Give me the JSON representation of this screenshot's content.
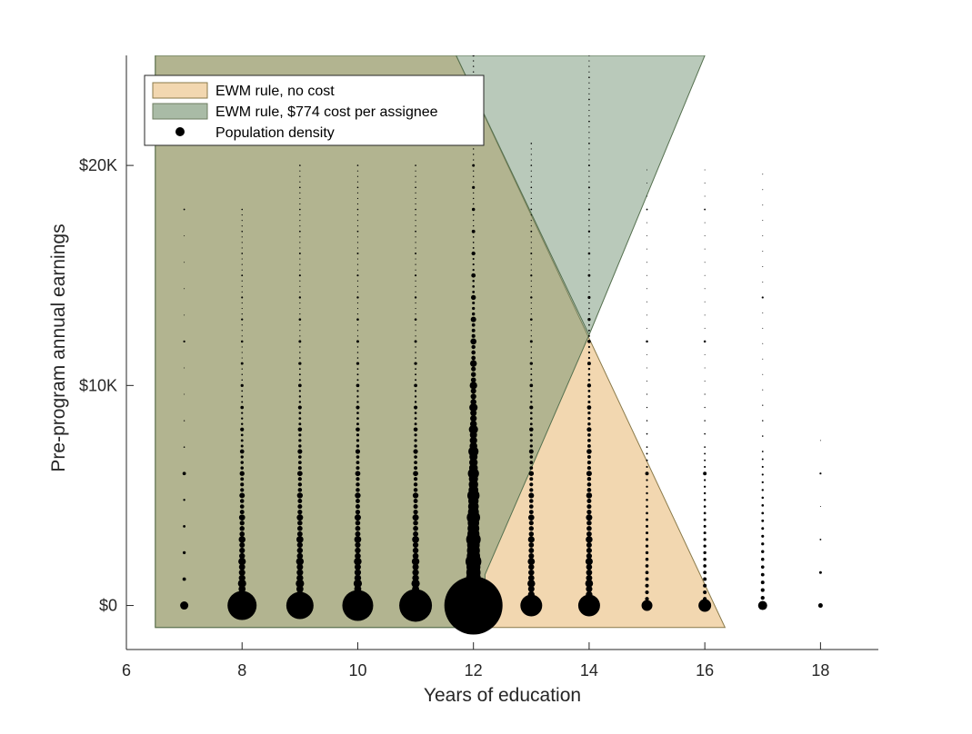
{
  "chart_data": {
    "type": "scatter",
    "title": "",
    "xlabel": "Years of education",
    "ylabel": "Pre-program annual earnings",
    "xlim": [
      6,
      19
    ],
    "ylim": [
      -2000,
      25000
    ],
    "xticks": [
      6,
      8,
      10,
      12,
      14,
      16,
      18
    ],
    "yticks": [
      0,
      10000,
      20000
    ],
    "xtick_labels": [
      "6",
      "8",
      "10",
      "12",
      "14",
      "16",
      "18"
    ],
    "ytick_labels": [
      "$0",
      "$10K",
      "$20K"
    ],
    "grid": false,
    "legend_position": "top-left",
    "legend": [
      {
        "label": "EWM rule, no cost",
        "kind": "patch",
        "color": "#f2d7b0",
        "edge": "#8a7a4a"
      },
      {
        "label": "EWM rule, $774 cost per assignee",
        "kind": "patch",
        "color": "#a9bba6",
        "edge": "#6e7e60"
      },
      {
        "label": "Population density",
        "kind": "marker",
        "color": "#000000"
      }
    ],
    "regions": [
      {
        "name": "EWM rule, no cost",
        "color": "#f2d7b0",
        "edge": "#8a7a4a",
        "opacity": 1,
        "polygon": [
          [
            6.5,
            -1000
          ],
          [
            6.5,
            25000
          ],
          [
            11.7,
            25000
          ],
          [
            16.35,
            -1000
          ]
        ]
      },
      {
        "name": "EWM rule, $774 cost per assignee",
        "color": "#6a8d6c",
        "edge": "#55704f",
        "opacity": 0.47,
        "polygon": [
          [
            6.5,
            -1000
          ],
          [
            6.5,
            25000
          ],
          [
            11.7,
            25000
          ],
          [
            14.0,
            12300
          ],
          [
            16.0,
            25000
          ],
          [
            11.7,
            25000
          ],
          [
            14.0,
            12300
          ],
          [
            12.2,
            1400
          ],
          [
            12.2,
            -1000
          ]
        ]
      }
    ],
    "density_columns": [
      {
        "x": 7,
        "base_size": 9,
        "y_max": 18000,
        "step": 400
      },
      {
        "x": 8,
        "base_size": 32,
        "y_max": 18000,
        "step": 250
      },
      {
        "x": 9,
        "base_size": 30,
        "y_max": 20000,
        "step": 250
      },
      {
        "x": 10,
        "base_size": 34,
        "y_max": 20000,
        "step": 250
      },
      {
        "x": 11,
        "base_size": 36,
        "y_max": 20000,
        "step": 250
      },
      {
        "x": 12,
        "base_size": 64,
        "y_max": 25000,
        "step": 250
      },
      {
        "x": 13,
        "base_size": 24,
        "y_max": 21000,
        "step": 250
      },
      {
        "x": 14,
        "base_size": 24,
        "y_max": 25000,
        "step": 250
      },
      {
        "x": 15,
        "base_size": 12,
        "y_max": 20000,
        "step": 300
      },
      {
        "x": 16,
        "base_size": 14,
        "y_max": 20000,
        "step": 300
      },
      {
        "x": 17,
        "base_size": 10,
        "y_max": 20000,
        "step": 350
      },
      {
        "x": 18,
        "base_size": 5,
        "y_max": 8500,
        "step": 500
      }
    ]
  }
}
